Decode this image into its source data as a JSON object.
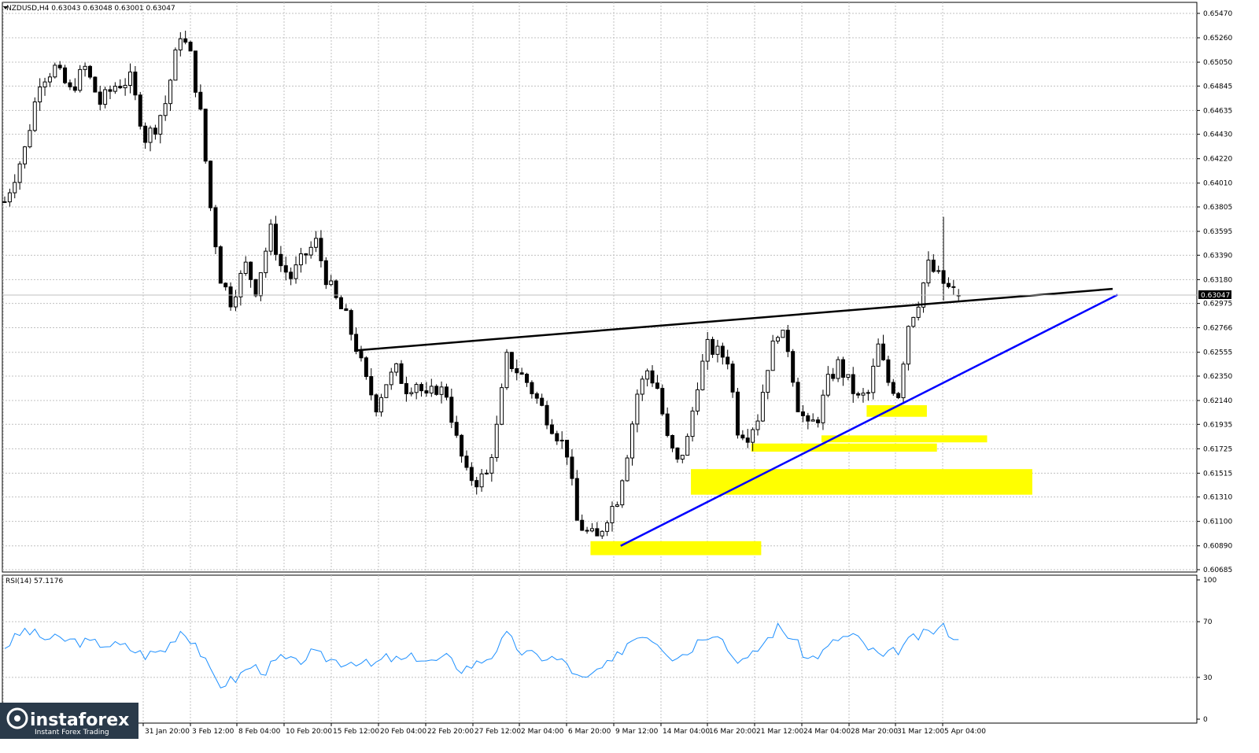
{
  "header": {
    "symbol_info": "NZDUSD,H4  0.63043 0.63048 0.63001 0.63047"
  },
  "price_axis": {
    "ticks": [
      "0.65470",
      "0.65260",
      "0.65050",
      "0.64845",
      "0.64635",
      "0.64430",
      "0.64220",
      "0.64010",
      "0.63805",
      "0.63595",
      "0.63390",
      "0.63180",
      "0.62975",
      "0.62766",
      "0.62555",
      "0.62350",
      "0.62140",
      "0.61935",
      "0.61725",
      "0.61515",
      "0.61310",
      "0.61100",
      "0.60890",
      "0.60685"
    ],
    "current_price": "0.63047"
  },
  "time_axis": {
    "ticks": [
      "19 J",
      "31 Jan 20:00",
      "3 Feb 12:00",
      "8 Feb 04:00",
      "10 Feb 20:00",
      "15 Feb 12:00",
      "20 Feb 04:00",
      "22 Feb 20:00",
      "27 Feb 12:00",
      "2 Mar 04:00",
      "6 Mar 20:00",
      "9 Mar 12:00",
      "14 Mar 04:00",
      "16 Mar 20:00",
      "21 Mar 12:00",
      "24 Mar 04:00",
      "28 Mar 20:00",
      "31 Mar 12:00",
      "5 Apr 04:00"
    ]
  },
  "rsi": {
    "label": "RSI(14) 57.1176",
    "ticks": [
      "100",
      "70",
      "30",
      "0"
    ]
  },
  "watermark": {
    "brand": "instaforex",
    "tagline": "Instant Forex Trading"
  },
  "colors": {
    "background": "#ffffff",
    "grid": "#c0c0c0",
    "candles": "#000000",
    "resistance_line": "#000000",
    "support_line": "#0000ff",
    "highlight_zones": "#ffff00",
    "rsi_line": "#1e90ff",
    "watermark_bg": "#2a3a4a"
  },
  "chart_data": {
    "type": "candlestick",
    "symbol": "NZDUSD",
    "timeframe": "H4",
    "last": {
      "open": 0.63043,
      "high": 0.63048,
      "low": 0.63001,
      "close": 0.63047
    },
    "ylim": [
      0.60685,
      0.6547
    ],
    "close_path": [
      [
        0,
        0.6385
      ],
      [
        4,
        0.643
      ],
      [
        7,
        0.649
      ],
      [
        10,
        0.65
      ],
      [
        13,
        0.648
      ],
      [
        16,
        0.65
      ],
      [
        19,
        0.647
      ],
      [
        22,
        0.6485
      ],
      [
        25,
        0.649
      ],
      [
        28,
        0.644
      ],
      [
        30,
        0.645
      ],
      [
        32,
        0.647
      ],
      [
        35,
        0.653
      ],
      [
        37,
        0.651
      ],
      [
        39,
        0.646
      ],
      [
        41,
        0.638
      ],
      [
        43,
        0.632
      ],
      [
        45,
        0.63
      ],
      [
        48,
        0.633
      ],
      [
        50,
        0.631
      ],
      [
        53,
        0.636
      ],
      [
        55,
        0.633
      ],
      [
        57,
        0.632
      ],
      [
        60,
        0.634
      ],
      [
        62,
        0.635
      ],
      [
        64,
        0.632
      ],
      [
        66,
        0.63
      ],
      [
        68,
        0.6285
      ],
      [
        70,
        0.626
      ],
      [
        72,
        0.623
      ],
      [
        74,
        0.621
      ],
      [
        76,
        0.623
      ],
      [
        78,
        0.624
      ],
      [
        80,
        0.6225
      ],
      [
        82,
        0.623
      ],
      [
        84,
        0.6215
      ],
      [
        86,
        0.6225
      ],
      [
        88,
        0.622
      ],
      [
        90,
        0.618
      ],
      [
        92,
        0.615
      ],
      [
        94,
        0.6145
      ],
      [
        96,
        0.615
      ],
      [
        98,
        0.619
      ],
      [
        100,
        0.625
      ],
      [
        102,
        0.624
      ],
      [
        104,
        0.623
      ],
      [
        106,
        0.6215
      ],
      [
        108,
        0.62
      ],
      [
        110,
        0.6185
      ],
      [
        112,
        0.617
      ],
      [
        114,
        0.611
      ],
      [
        116,
        0.61
      ],
      [
        118,
        0.6095
      ],
      [
        120,
        0.6115
      ],
      [
        122,
        0.613
      ],
      [
        124,
        0.617
      ],
      [
        126,
        0.622
      ],
      [
        128,
        0.624
      ],
      [
        130,
        0.6225
      ],
      [
        132,
        0.618
      ],
      [
        134,
        0.616
      ],
      [
        136,
        0.618
      ],
      [
        138,
        0.623
      ],
      [
        140,
        0.626
      ],
      [
        142,
        0.6255
      ],
      [
        144,
        0.625
      ],
      [
        146,
        0.619
      ],
      [
        148,
        0.6185
      ],
      [
        150,
        0.62
      ],
      [
        152,
        0.6245
      ],
      [
        154,
        0.6275
      ],
      [
        156,
        0.626
      ],
      [
        158,
        0.621
      ],
      [
        160,
        0.619
      ],
      [
        162,
        0.62
      ],
      [
        164,
        0.623
      ],
      [
        166,
        0.6245
      ],
      [
        168,
        0.623
      ],
      [
        170,
        0.6215
      ],
      [
        172,
        0.622
      ],
      [
        174,
        0.626
      ],
      [
        176,
        0.623
      ],
      [
        178,
        0.622
      ],
      [
        180,
        0.628
      ],
      [
        182,
        0.63
      ],
      [
        184,
        0.633
      ],
      [
        186,
        0.632
      ],
      [
        188,
        0.631
      ],
      [
        190,
        0.6305
      ]
    ],
    "rsi_period": 14,
    "rsi_value": 57.1176,
    "rsi_ylim": [
      0,
      100
    ],
    "rsi_levels": [
      30,
      70
    ],
    "rsi_path": [
      [
        0,
        52
      ],
      [
        4,
        64
      ],
      [
        8,
        58
      ],
      [
        12,
        57
      ],
      [
        16,
        55
      ],
      [
        20,
        54
      ],
      [
        24,
        52
      ],
      [
        28,
        46
      ],
      [
        32,
        50
      ],
      [
        35,
        64
      ],
      [
        38,
        55
      ],
      [
        41,
        33
      ],
      [
        43,
        25
      ],
      [
        46,
        29
      ],
      [
        49,
        38
      ],
      [
        52,
        35
      ],
      [
        55,
        44
      ],
      [
        58,
        40
      ],
      [
        61,
        47
      ],
      [
        64,
        44
      ],
      [
        67,
        41
      ],
      [
        70,
        42
      ],
      [
        73,
        38
      ],
      [
        76,
        44
      ],
      [
        79,
        42
      ],
      [
        82,
        45
      ],
      [
        85,
        41
      ],
      [
        88,
        44
      ],
      [
        91,
        36
      ],
      [
        94,
        40
      ],
      [
        97,
        46
      ],
      [
        100,
        60
      ],
      [
        103,
        48
      ],
      [
        106,
        45
      ],
      [
        109,
        44
      ],
      [
        112,
        40
      ],
      [
        114,
        30
      ],
      [
        116,
        28
      ],
      [
        118,
        35
      ],
      [
        121,
        40
      ],
      [
        124,
        55
      ],
      [
        127,
        62
      ],
      [
        130,
        56
      ],
      [
        133,
        45
      ],
      [
        136,
        48
      ],
      [
        139,
        60
      ],
      [
        142,
        63
      ],
      [
        145,
        45
      ],
      [
        148,
        42
      ],
      [
        151,
        54
      ],
      [
        154,
        66
      ],
      [
        157,
        58
      ],
      [
        160,
        43
      ],
      [
        163,
        48
      ],
      [
        166,
        58
      ],
      [
        169,
        60
      ],
      [
        172,
        51
      ],
      [
        175,
        44
      ],
      [
        178,
        50
      ],
      [
        181,
        58
      ],
      [
        184,
        62
      ],
      [
        187,
        66
      ],
      [
        190,
        57
      ]
    ],
    "annotations": {
      "resistance_line": {
        "from": [
          70,
          0.6257
        ],
        "to": [
          221,
          0.631
        ]
      },
      "support_line": {
        "from": [
          123,
          0.6089
        ],
        "to": [
          222,
          0.6305
        ]
      },
      "zones": [
        {
          "x": [
            117,
            151
          ],
          "y": [
            0.6081,
            0.6093
          ]
        },
        {
          "x": [
            137,
            205
          ],
          "y": [
            0.6133,
            0.6155
          ]
        },
        {
          "x": [
            149,
            186
          ],
          "y": [
            0.617,
            0.6177
          ]
        },
        {
          "x": [
            163,
            196
          ],
          "y": [
            0.6178,
            0.6184
          ]
        },
        {
          "x": [
            172,
            184
          ],
          "y": [
            0.62,
            0.621
          ]
        }
      ]
    }
  }
}
